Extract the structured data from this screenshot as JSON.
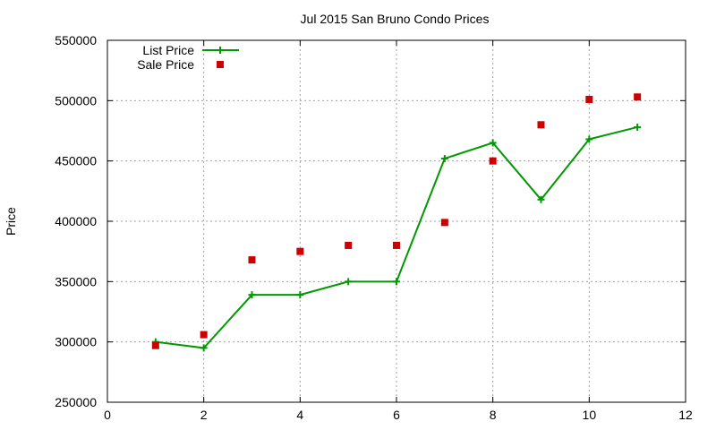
{
  "chart_data": {
    "type": "line",
    "title": "Jul 2015 San Bruno Condo Prices",
    "xlabel": "",
    "ylabel": "Price",
    "xlim": [
      0,
      12
    ],
    "ylim": [
      250000,
      550000
    ],
    "x_ticks": [
      "0",
      "2",
      "4",
      "6",
      "8",
      "10",
      "12"
    ],
    "y_ticks": [
      "250000",
      "300000",
      "350000",
      "400000",
      "450000",
      "500000",
      "550000"
    ],
    "grid": true,
    "legend_position": "top-left",
    "series": [
      {
        "name": "List Price",
        "style": "lines+points",
        "marker": "plus",
        "color": "#009900",
        "x": [
          1,
          2,
          3,
          4,
          5,
          6,
          7,
          8,
          9,
          10,
          11
        ],
        "y": [
          300000,
          295000,
          339000,
          339000,
          350000,
          350000,
          452000,
          465000,
          418000,
          468000,
          478000
        ]
      },
      {
        "name": "Sale Price",
        "style": "points",
        "marker": "square",
        "color": "#cc0000",
        "x": [
          1,
          2,
          3,
          4,
          5,
          6,
          7,
          8,
          9,
          10,
          11
        ],
        "y": [
          297000,
          306000,
          368000,
          375000,
          380000,
          380000,
          399000,
          450000,
          480000,
          501000,
          503000
        ]
      }
    ]
  }
}
